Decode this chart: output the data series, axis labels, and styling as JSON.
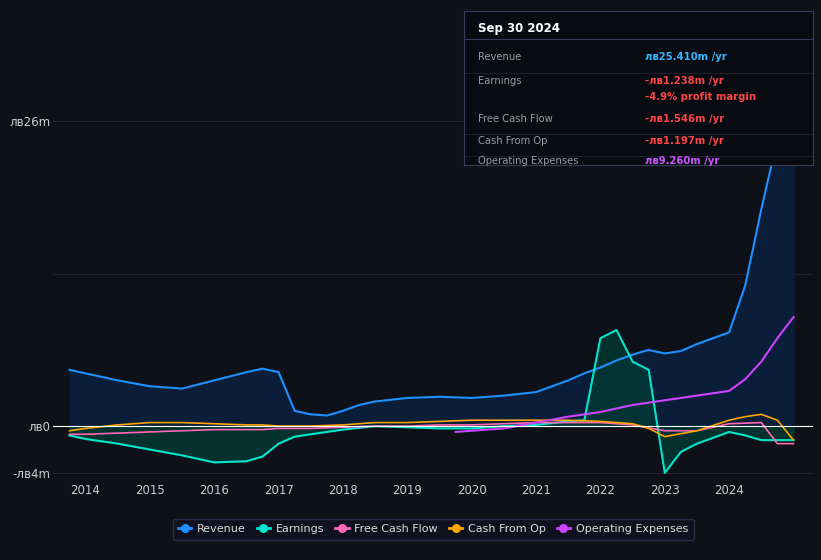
{
  "bg_color": "#0e1117",
  "plot_bg_color": "#0e1117",
  "grid_color": "#252535",
  "ylim": [
    -4.5,
    28
  ],
  "ytick_positions": [
    -4,
    0,
    26
  ],
  "ytick_labels": [
    "-лв4m",
    "лв0",
    "лв26m"
  ],
  "xlim": [
    2013.5,
    2025.3
  ],
  "xticks": [
    2014,
    2015,
    2016,
    2017,
    2018,
    2019,
    2020,
    2021,
    2022,
    2023,
    2024
  ],
  "tooltip": {
    "date": "Sep 30 2024",
    "rows": [
      {
        "label": "Revenue",
        "value": "лв2​5.410m /yr",
        "value_color": "#38b6ff"
      },
      {
        "label": "Earnings",
        "value": "-лв1.238m /yr",
        "value_color": "#ff4444"
      },
      {
        "label": "",
        "value": "-4.9% profit margin",
        "value_color": "#ff4444"
      },
      {
        "label": "Free Cash Flow",
        "value": "-лв1.546m /yr",
        "value_color": "#ff4444"
      },
      {
        "label": "Cash From Op",
        "value": "-лв1.197m /yr",
        "value_color": "#ff4444"
      },
      {
        "label": "Operating Expenses",
        "value": "лв9.260m /yr",
        "value_color": "#cc55ff"
      }
    ]
  },
  "series": {
    "revenue": {
      "color": "#1e90ff",
      "fill_color": "#0a2040",
      "label": "Revenue",
      "x": [
        2013.75,
        2014.0,
        2014.5,
        2015.0,
        2015.5,
        2016.0,
        2016.5,
        2016.75,
        2017.0,
        2017.25,
        2017.5,
        2017.75,
        2018.0,
        2018.25,
        2018.5,
        2019.0,
        2019.5,
        2020.0,
        2020.5,
        2021.0,
        2021.5,
        2021.75,
        2022.0,
        2022.25,
        2022.5,
        2022.75,
        2023.0,
        2023.25,
        2023.5,
        2023.75,
        2024.0,
        2024.25,
        2024.5,
        2024.75,
        2025.0
      ],
      "y": [
        4.8,
        4.5,
        3.9,
        3.4,
        3.2,
        3.9,
        4.6,
        4.9,
        4.6,
        1.3,
        1.0,
        0.9,
        1.3,
        1.8,
        2.1,
        2.4,
        2.5,
        2.4,
        2.6,
        2.9,
        3.9,
        4.5,
        5.0,
        5.6,
        6.1,
        6.5,
        6.2,
        6.4,
        7.0,
        7.5,
        8.0,
        12.0,
        18.5,
        24.5,
        25.4
      ]
    },
    "earnings": {
      "color": "#00e5cc",
      "fill_color": "#003d35",
      "label": "Earnings",
      "x": [
        2013.75,
        2014.0,
        2014.5,
        2015.0,
        2015.5,
        2016.0,
        2016.5,
        2016.75,
        2017.0,
        2017.25,
        2017.5,
        2017.75,
        2018.0,
        2018.5,
        2019.0,
        2019.5,
        2020.0,
        2020.5,
        2021.0,
        2021.5,
        2021.75,
        2022.0,
        2022.25,
        2022.5,
        2022.75,
        2023.0,
        2023.25,
        2023.5,
        2023.75,
        2024.0,
        2024.25,
        2024.5,
        2024.75,
        2025.0
      ],
      "y": [
        -0.8,
        -1.1,
        -1.5,
        -2.0,
        -2.5,
        -3.1,
        -3.0,
        -2.6,
        -1.5,
        -0.9,
        -0.7,
        -0.5,
        -0.3,
        0.0,
        -0.1,
        -0.2,
        -0.2,
        0.0,
        0.1,
        0.4,
        0.5,
        7.5,
        8.2,
        5.5,
        4.8,
        -4.0,
        -2.2,
        -1.5,
        -1.0,
        -0.5,
        -0.8,
        -1.2,
        -1.2,
        -1.2
      ]
    },
    "free_cash_flow": {
      "color": "#ff69b4",
      "label": "Free Cash Flow",
      "x": [
        2013.75,
        2014.0,
        2014.5,
        2015.0,
        2015.5,
        2016.0,
        2016.5,
        2016.75,
        2017.0,
        2017.5,
        2018.0,
        2018.5,
        2019.0,
        2019.5,
        2020.0,
        2020.5,
        2021.0,
        2021.5,
        2022.0,
        2022.5,
        2023.0,
        2023.5,
        2024.0,
        2024.5,
        2024.75,
        2025.0
      ],
      "y": [
        -0.7,
        -0.7,
        -0.6,
        -0.5,
        -0.4,
        -0.3,
        -0.3,
        -0.3,
        -0.2,
        -0.2,
        -0.1,
        0.0,
        0.0,
        0.1,
        0.1,
        0.2,
        0.3,
        0.3,
        0.3,
        0.1,
        -0.4,
        -0.4,
        0.2,
        0.3,
        -1.5,
        -1.5
      ]
    },
    "cash_from_op": {
      "color": "#ffa500",
      "label": "Cash From Op",
      "x": [
        2013.75,
        2014.0,
        2014.5,
        2015.0,
        2015.5,
        2016.0,
        2016.5,
        2016.75,
        2017.0,
        2017.5,
        2018.0,
        2018.5,
        2019.0,
        2019.5,
        2020.0,
        2020.5,
        2021.0,
        2021.5,
        2022.0,
        2022.25,
        2022.5,
        2022.75,
        2023.0,
        2023.5,
        2024.0,
        2024.25,
        2024.5,
        2024.75,
        2025.0
      ],
      "y": [
        -0.4,
        -0.2,
        0.1,
        0.3,
        0.3,
        0.2,
        0.1,
        0.1,
        0.0,
        0.0,
        0.1,
        0.3,
        0.3,
        0.4,
        0.5,
        0.5,
        0.5,
        0.5,
        0.4,
        0.3,
        0.2,
        -0.2,
        -0.9,
        -0.4,
        0.5,
        0.8,
        1.0,
        0.5,
        -1.2
      ]
    },
    "operating_expenses": {
      "color": "#cc44ff",
      "label": "Operating Expenses",
      "x": [
        2019.75,
        2020.0,
        2020.5,
        2021.0,
        2021.5,
        2022.0,
        2022.25,
        2022.5,
        2022.75,
        2023.0,
        2023.25,
        2023.5,
        2023.75,
        2024.0,
        2024.25,
        2024.5,
        2024.75,
        2025.0
      ],
      "y": [
        -0.5,
        -0.4,
        -0.2,
        0.3,
        0.8,
        1.2,
        1.5,
        1.8,
        2.0,
        2.2,
        2.4,
        2.6,
        2.8,
        3.0,
        4.0,
        5.5,
        7.5,
        9.3
      ]
    }
  },
  "legend": [
    {
      "label": "Revenue",
      "color": "#1e90ff"
    },
    {
      "label": "Earnings",
      "color": "#00e5cc"
    },
    {
      "label": "Free Cash Flow",
      "color": "#ff69b4"
    },
    {
      "label": "Cash From Op",
      "color": "#ffa500"
    },
    {
      "label": "Operating Expenses",
      "color": "#cc44ff"
    }
  ]
}
